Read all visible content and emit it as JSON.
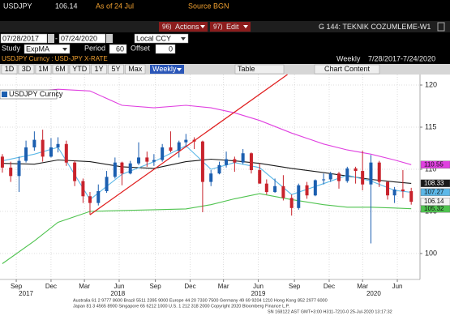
{
  "header": {
    "ticker": "USDJPY",
    "as_of": "As of 24 Jul",
    "source": "Source BGN"
  },
  "toolbar": {
    "actions_code": "96)",
    "actions": "Actions",
    "edit_code": "97)",
    "edit": "Edit",
    "page_code": "G 144: TEKNIK COZUMLEME-W1"
  },
  "dates": {
    "start": "07/28/2017",
    "end": "07/24/2020",
    "currency": "Local CCY"
  },
  "study": {
    "label": "Study",
    "value": "ExpMA",
    "period_label": "Period",
    "period": 60,
    "offset_label": "Offset",
    "offset": 0
  },
  "chart_header": {
    "security": "USDJPY Curncy : USD-JPY X-RATE",
    "frequency": "Weekly",
    "range": "7/28/2017-7/24/2020"
  },
  "buttons": [
    "1D",
    "3D",
    "1M",
    "6M",
    "YTD",
    "1Y",
    "5Y",
    "Max"
  ],
  "frequency_menu": "Weekly",
  "table": "Table",
  "chart_content": "Chart Content",
  "footer": [
    "Australia 61 2 9777 8600 Brazil 5511 2395 9000 Europe 44 20 7330 7500 Germany 49 69 9204 1210 Hong Kong 852 2977 6000",
    "Japan 81 3 4565 8900      Singapore 65 6212 1000      U.S. 1 212 318 2000      Copyright 2020 Bloomberg Finance L.P.",
    "SN 168122 AST  GMT+3:00 H311-7210-0 25-Jul-2020 13:17:32"
  ],
  "chart_data": {
    "type": "candlestick",
    "candles": {
      "name": "USDJPY Curncy",
      "up_color": "#1c5fb0",
      "down_color": "#c8232c",
      "x": [
        2017.57,
        2017.63,
        2017.69,
        2017.74,
        2017.8,
        2017.86,
        2017.92,
        2017.97,
        2018.03,
        2018.09,
        2018.15,
        2018.2,
        2018.26,
        2018.32,
        2018.38,
        2018.43,
        2018.49,
        2018.55,
        2018.61,
        2018.66,
        2018.72,
        2018.78,
        2018.84,
        2018.89,
        2018.95,
        2019.01,
        2019.07,
        2019.13,
        2019.18,
        2019.24,
        2019.3,
        2019.36,
        2019.42,
        2019.47,
        2019.53,
        2019.59,
        2019.65,
        2019.7,
        2019.76,
        2019.82,
        2019.88,
        2019.93,
        2019.99,
        2020.05,
        2020.11,
        2020.16,
        2020.22,
        2020.28,
        2020.34,
        2020.39,
        2020.45,
        2020.51
      ],
      "open": [
        111.5,
        110.2,
        109.2,
        111,
        112.6,
        113.5,
        111.5,
        112.6,
        113,
        110.8,
        108.6,
        106.8,
        106,
        107.4,
        109.1,
        110.8,
        109.5,
        110.7,
        111.4,
        110.9,
        111.1,
        112.6,
        112.2,
        113.2,
        113.5,
        113.3,
        108.5,
        109.5,
        110.5,
        111.2,
        110.8,
        111.9,
        109.9,
        108.3,
        107.3,
        108,
        106.6,
        105.4,
        108.1,
        106.9,
        108.7,
        108.8,
        109.5,
        108.6,
        110.1,
        109.8,
        108.2,
        110.8,
        108.5,
        106.9,
        107.6,
        107.4
      ],
      "high": [
        111.8,
        110.9,
        111.5,
        113.4,
        114.5,
        114.7,
        113.7,
        113.8,
        113.4,
        111,
        108.9,
        107.3,
        108.2,
        109.8,
        111.4,
        110.9,
        111,
        113.2,
        112.1,
        111.8,
        113,
        114.5,
        113.4,
        114.2,
        113.8,
        113.4,
        109.9,
        110.9,
        112.1,
        111.5,
        112.4,
        112,
        110.7,
        108.8,
        108.9,
        109.3,
        107,
        108.3,
        108.5,
        108.8,
        109.5,
        109.7,
        109.7,
        110.3,
        110.3,
        112.2,
        111.7,
        111,
        108.6,
        107.9,
        109.9,
        107.8
      ],
      "low": [
        109.6,
        108.5,
        107.3,
        110.8,
        112.2,
        110.9,
        111.4,
        112,
        110.4,
        108,
        106,
        104.6,
        105.7,
        107.2,
        108.9,
        108.1,
        109.4,
        110.5,
        110.3,
        110.4,
        110.9,
        112,
        111.4,
        112.6,
        112.4,
        104.9,
        108,
        109.4,
        110.2,
        109.7,
        110.6,
        109.5,
        108.3,
        107,
        107.2,
        106.3,
        104.5,
        105.2,
        106.5,
        106.8,
        108.2,
        108.5,
        107.7,
        108.4,
        108.3,
        107.5,
        101.2,
        107.9,
        106.4,
        106,
        106.6,
        105.8
      ],
      "close": [
        110.2,
        109.2,
        111,
        112.6,
        113.5,
        111.5,
        112.6,
        113,
        110.8,
        108.6,
        106.8,
        106,
        107.4,
        109.1,
        110.8,
        109.5,
        110.7,
        111.4,
        110.9,
        111.1,
        112.6,
        112.2,
        113.2,
        113.5,
        113.3,
        108.5,
        109.5,
        110.5,
        111.2,
        110.8,
        111.9,
        109.9,
        108.3,
        107.3,
        108,
        106.6,
        105.4,
        108.1,
        106.9,
        108.7,
        108.8,
        109.5,
        108.6,
        110.1,
        109.8,
        108.2,
        110.8,
        108.5,
        106.9,
        107.6,
        107.4,
        106.14
      ]
    },
    "x": [
      2017.57,
      2017.8,
      2017.97,
      2018.2,
      2018.43,
      2018.66,
      2018.89,
      2019.07,
      2019.24,
      2019.42,
      2019.65,
      2019.88,
      2020.05,
      2020.22,
      2020.39,
      2020.51
    ],
    "series": [
      {
        "color": "#e040e0",
        "values": [
          118.7,
          119.2,
          119.5,
          119.3,
          117.6,
          117.3,
          117.6,
          117.3,
          116.7,
          115.8,
          114.3,
          113,
          112.3,
          111.8,
          111.1,
          110.55
        ]
      },
      {
        "color": "#1a1a1a",
        "values": [
          110.7,
          110.6,
          111.1,
          110.9,
          110.3,
          110.1,
          110.9,
          111.2,
          111,
          110.7,
          110.1,
          109.6,
          109.2,
          108.8,
          108.5,
          108.33
        ]
      },
      {
        "color": "#4fc34f",
        "values": [
          98.8,
          101.5,
          103.7,
          105,
          105.1,
          105.2,
          105.3,
          105.8,
          106.5,
          107.1,
          106.4,
          105.8,
          105.5,
          105.5,
          105.4,
          105.32
        ]
      },
      {
        "color": "#5cb8e8",
        "values": [
          111,
          111.8,
          112.6,
          106.4,
          109.4,
          110.9,
          112.8,
          110,
          110.8,
          110.2,
          107,
          108.3,
          109.3,
          108.6,
          107.5,
          107.27
        ]
      }
    ],
    "trendline": {
      "color": "#e02020",
      "x": [
        2018.2,
        2019.62
      ],
      "y": [
        104.6,
        121.25
      ]
    },
    "xlim": [
      2017.553,
      2020.573
    ],
    "ylim": [
      96.92,
      121.25
    ],
    "yticks": [
      100,
      105,
      110,
      115,
      120
    ],
    "xticks": [
      {
        "value": 2017.67,
        "label": "Sep"
      },
      {
        "value": 2017.92,
        "label": "Dec"
      },
      {
        "value": 2018.16,
        "label": "Mar"
      },
      {
        "value": 2018.41,
        "label": "Jun"
      },
      {
        "value": 2018.67,
        "label": "Sep"
      },
      {
        "value": 2018.92,
        "label": "Dec"
      },
      {
        "value": 2019.16,
        "label": "Mar"
      },
      {
        "value": 2019.41,
        "label": "Jun"
      },
      {
        "value": 2019.67,
        "label": "Sep"
      },
      {
        "value": 2019.92,
        "label": "Dec"
      },
      {
        "value": 2020.16,
        "label": "Mar"
      },
      {
        "value": 2020.41,
        "label": "Jun"
      }
    ],
    "year_ticks": [
      {
        "value": 2017.74,
        "label": "2017"
      },
      {
        "value": 2018.4,
        "label": "2018"
      },
      {
        "value": 2019.41,
        "label": "2019"
      },
      {
        "value": 2020.24,
        "label": "2020"
      }
    ],
    "grid": true
  }
}
